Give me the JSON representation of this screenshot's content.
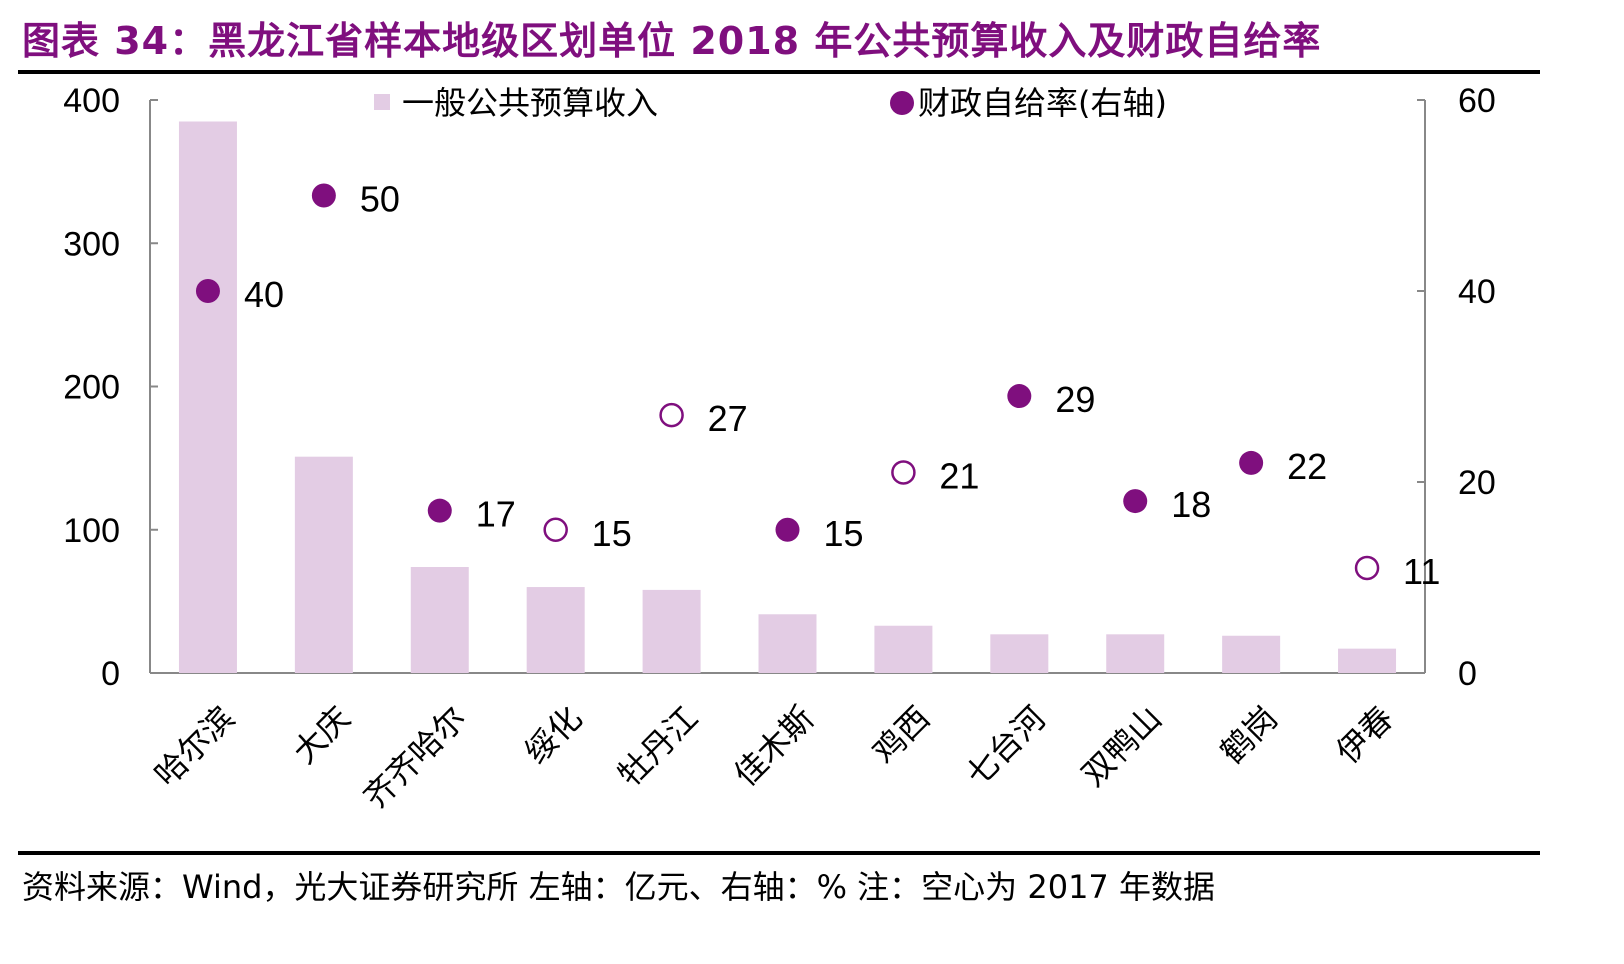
{
  "title": "图表 34：黑龙江省样本地级区划单位 2018 年公共预算收入及财政自给率",
  "footer": "资料来源：Wind，光大证券研究所  左轴：亿元、右轴：%   注：空心为 2017 年数据",
  "colors": {
    "title": "#7f0f7e",
    "bar": "#e3cce4",
    "dot": "#7f0f7e"
  },
  "chart_data": {
    "type": "bar+scatter",
    "categories": [
      "哈尔滨",
      "大庆",
      "齐齐哈尔",
      "绥化",
      "牡丹江",
      "佳木斯",
      "鸡西",
      "七台河",
      "双鸭山",
      "鹤岗",
      "伊春"
    ],
    "series": [
      {
        "name": "一般公共预算收入",
        "axis": "left",
        "type": "bar",
        "values": [
          385,
          151,
          74,
          60,
          58,
          41,
          33,
          27,
          27,
          26,
          17
        ]
      },
      {
        "name": "财政自给率(右轴)",
        "axis": "right",
        "type": "scatter",
        "values": [
          40,
          50,
          17,
          15,
          27,
          15,
          21,
          29,
          18,
          22,
          11
        ],
        "hollow_2017": [
          false,
          false,
          false,
          true,
          true,
          false,
          true,
          false,
          false,
          false,
          true
        ]
      }
    ],
    "left_axis": {
      "range": [
        0,
        400
      ],
      "ticks": [
        "0",
        "100",
        "200",
        "300",
        "400"
      ]
    },
    "right_axis": {
      "range": [
        0,
        60
      ],
      "ticks": [
        "0",
        "20",
        "40",
        "60"
      ]
    },
    "legend": [
      "一般公共预算收入",
      "财政自给率(右轴)"
    ],
    "legend_position": "top"
  }
}
